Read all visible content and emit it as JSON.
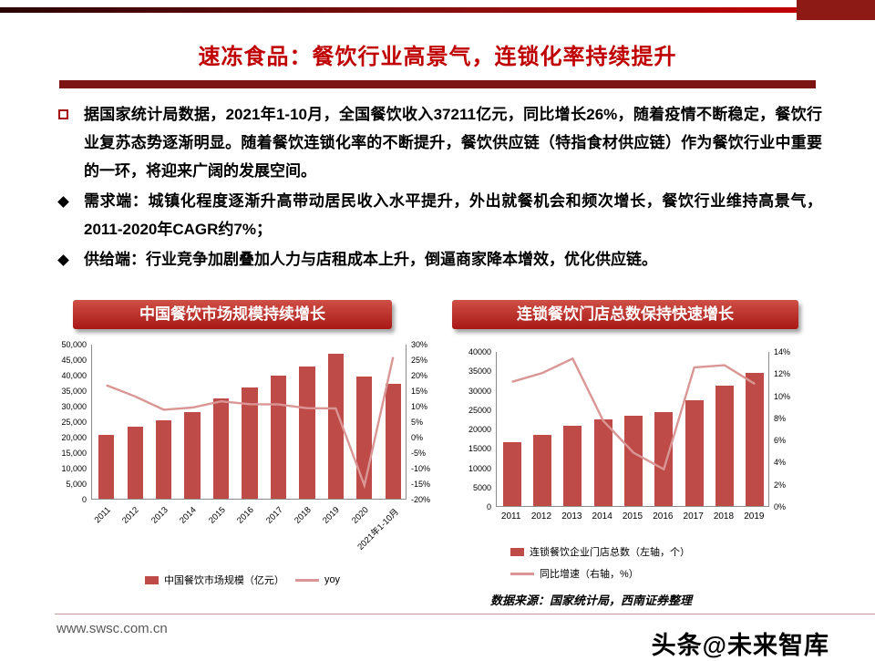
{
  "colors": {
    "title_red": "#C00000",
    "banner_red": "#A81815",
    "title_bar_maroon": "#7B1412",
    "bar_series_red": "#BE4B48",
    "line_series_pink": "#D99694"
  },
  "slide": {
    "title": "速冻食品：餐饮行业高景气，连锁化率持续提升",
    "bullets": [
      {
        "prefix": "",
        "text": "据国家统计局数据，2021年1-10月，全国餐饮收入37211亿元，同比增长26%，随着疫情不断稳定，餐饮行业复苏态势逐渐明显。随着餐饮连锁化率的不断提升，餐饮供应链（特指食材供应链）作为餐饮行业中重要的一环，将迎来广阔的发展空间。"
      },
      {
        "prefix": "需求端：",
        "text": "城镇化程度逐渐升高带动居民收入水平提升，外出就餐机会和频次增长，餐饮行业维持高景气，2011-2020年CAGR约7%；"
      },
      {
        "prefix": "供给端：",
        "text": "行业竞争加剧叠加人力与店租成本上升，倒逼商家降本增效，优化供应链。"
      }
    ],
    "source_note": "数据来源：国家统计局，西南证券整理",
    "website": "www.swsc.com.cn",
    "watermark": "头条@未来智库"
  },
  "chart_data": [
    {
      "type": "bar+line",
      "banner_title": "中国餐饮市场规模持续增长",
      "categories": [
        "2011",
        "2012",
        "2013",
        "2014",
        "2015",
        "2016",
        "2017",
        "2018",
        "2019",
        "2020",
        "2021年1-10月"
      ],
      "series": [
        {
          "name": "中国餐饮市场规模（亿元）",
          "type": "bar",
          "axis": "left",
          "color": "#BE4B48",
          "values": [
            20543,
            23283,
            25392,
            27860,
            32310,
            35799,
            39644,
            42716,
            46721,
            39527,
            37211
          ]
        },
        {
          "name": "yoy",
          "type": "line",
          "axis": "right",
          "color": "#D99694",
          "values": [
            16.9,
            13.3,
            9.0,
            9.7,
            11.7,
            10.8,
            10.7,
            9.5,
            9.4,
            -15.4,
            26.0
          ]
        }
      ],
      "left_axis": {
        "min": 0,
        "max": 50000,
        "tick_labels": [
          "50,000",
          "45,000",
          "40,000",
          "35,000",
          "30,000",
          "25,000",
          "20,000",
          "15,000",
          "10,000",
          "5,000",
          "0"
        ]
      },
      "right_axis": {
        "min": -20,
        "max": 30,
        "tick_labels": [
          "30%",
          "25%",
          "20%",
          "15%",
          "10%",
          "5%",
          "0%",
          "-5%",
          "-10%",
          "-15%",
          "-20%"
        ]
      },
      "legend_position": "bottom",
      "grid": false
    },
    {
      "type": "bar+line",
      "banner_title": "连锁餐饮门店总数保持快速增长",
      "categories": [
        "2011",
        "2012",
        "2013",
        "2014",
        "2015",
        "2016",
        "2017",
        "2018",
        "2019"
      ],
      "series": [
        {
          "name": "连锁餐饮企业门店总数（左轴，个）",
          "type": "bar",
          "axis": "left",
          "color": "#BE4B48",
          "values": [
            16500,
            18300,
            20800,
            22400,
            23400,
            24200,
            27300,
            31000,
            34400
          ]
        },
        {
          "name": "同比增速（右轴，%）",
          "type": "line",
          "axis": "right",
          "color": "#D99694",
          "values": [
            11.3,
            12.1,
            13.4,
            7.8,
            4.9,
            3.4,
            12.6,
            12.8,
            11.1
          ]
        }
      ],
      "left_axis": {
        "min": 0,
        "max": 40000,
        "tick_labels": [
          "40000",
          "35000",
          "30000",
          "25000",
          "20000",
          "15000",
          "10000",
          "5000",
          "0"
        ]
      },
      "right_axis": {
        "min": 0,
        "max": 14,
        "tick_labels": [
          "14%",
          "12%",
          "10%",
          "8%",
          "6%",
          "4%",
          "2%",
          "0%"
        ]
      },
      "legend_position": "bottom",
      "grid": false
    }
  ]
}
